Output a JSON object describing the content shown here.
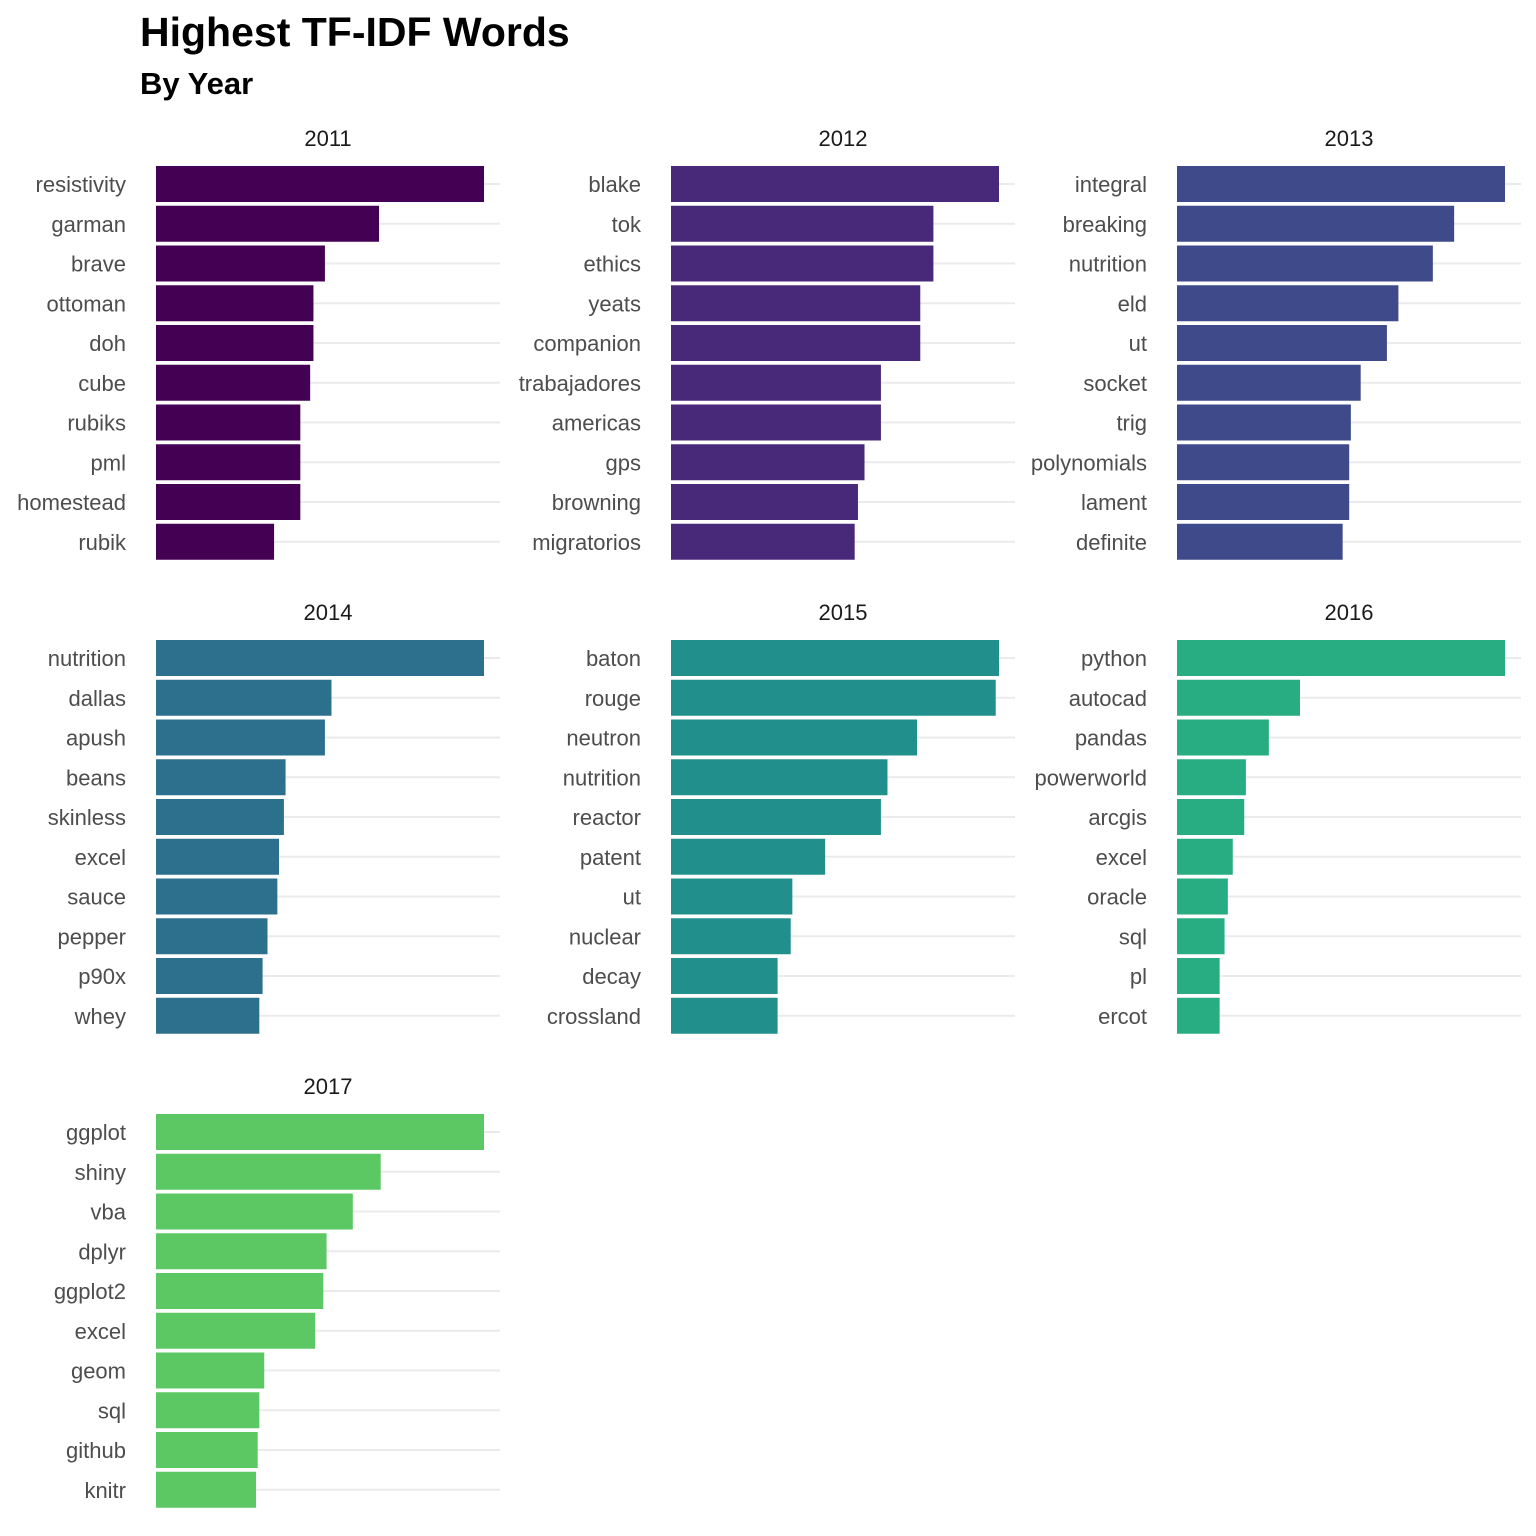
{
  "title": "Highest TF-IDF Words",
  "subtitle": "By Year",
  "chart_data": {
    "type": "bar",
    "orientation": "horizontal",
    "faceted_by": "year",
    "facet_layout": "3 columns",
    "grid": "horizontal major gridlines only",
    "x_axis": "hidden",
    "facets": [
      {
        "label": "2011",
        "color": "#440154",
        "categories": [
          "resistivity",
          "garman",
          "brave",
          "ottoman",
          "doh",
          "cube",
          "rubiks",
          "pml",
          "homestead",
          "rubik"
        ],
        "values": [
          1.0,
          0.68,
          0.515,
          0.48,
          0.48,
          0.47,
          0.44,
          0.44,
          0.44,
          0.36
        ]
      },
      {
        "label": "2012",
        "color": "#482878",
        "categories": [
          "blake",
          "tok",
          "ethics",
          "yeats",
          "companion",
          "trabajadores",
          "americas",
          "gps",
          "browning",
          "migratorios"
        ],
        "values": [
          1.0,
          0.8,
          0.8,
          0.76,
          0.76,
          0.64,
          0.64,
          0.59,
          0.57,
          0.56
        ]
      },
      {
        "label": "2013",
        "color": "#3E4A89",
        "categories": [
          "integral",
          "breaking",
          "nutrition",
          "eld",
          "ut",
          "socket",
          "trig",
          "polynomials",
          "lament",
          "definite"
        ],
        "values": [
          1.0,
          0.845,
          0.78,
          0.675,
          0.64,
          0.56,
          0.53,
          0.525,
          0.525,
          0.505
        ]
      },
      {
        "label": "2014",
        "color": "#2D708E",
        "categories": [
          "nutrition",
          "dallas",
          "apush",
          "beans",
          "skinless",
          "excel",
          "sauce",
          "pepper",
          "p90x",
          "whey"
        ],
        "values": [
          1.0,
          0.535,
          0.515,
          0.395,
          0.39,
          0.375,
          0.37,
          0.34,
          0.325,
          0.315
        ]
      },
      {
        "label": "2015",
        "color": "#21908D",
        "categories": [
          "baton",
          "rouge",
          "neutron",
          "nutrition",
          "reactor",
          "patent",
          "ut",
          "nuclear",
          "decay",
          "crossland"
        ],
        "values": [
          1.0,
          0.99,
          0.75,
          0.66,
          0.64,
          0.47,
          0.37,
          0.365,
          0.325,
          0.325
        ]
      },
      {
        "label": "2016",
        "color": "#27AD81",
        "categories": [
          "python",
          "autocad",
          "pandas",
          "powerworld",
          "arcgis",
          "excel",
          "oracle",
          "sql",
          "pl",
          "ercot"
        ],
        "values": [
          1.0,
          0.375,
          0.28,
          0.21,
          0.205,
          0.17,
          0.155,
          0.145,
          0.13,
          0.13
        ]
      },
      {
        "label": "2017",
        "color": "#5CC863",
        "categories": [
          "ggplot",
          "shiny",
          "vba",
          "dplyr",
          "ggplot2",
          "excel",
          "geom",
          "sql",
          "github",
          "knitr"
        ],
        "values": [
          1.0,
          0.685,
          0.6,
          0.52,
          0.51,
          0.485,
          0.33,
          0.315,
          0.31,
          0.305
        ]
      }
    ]
  }
}
